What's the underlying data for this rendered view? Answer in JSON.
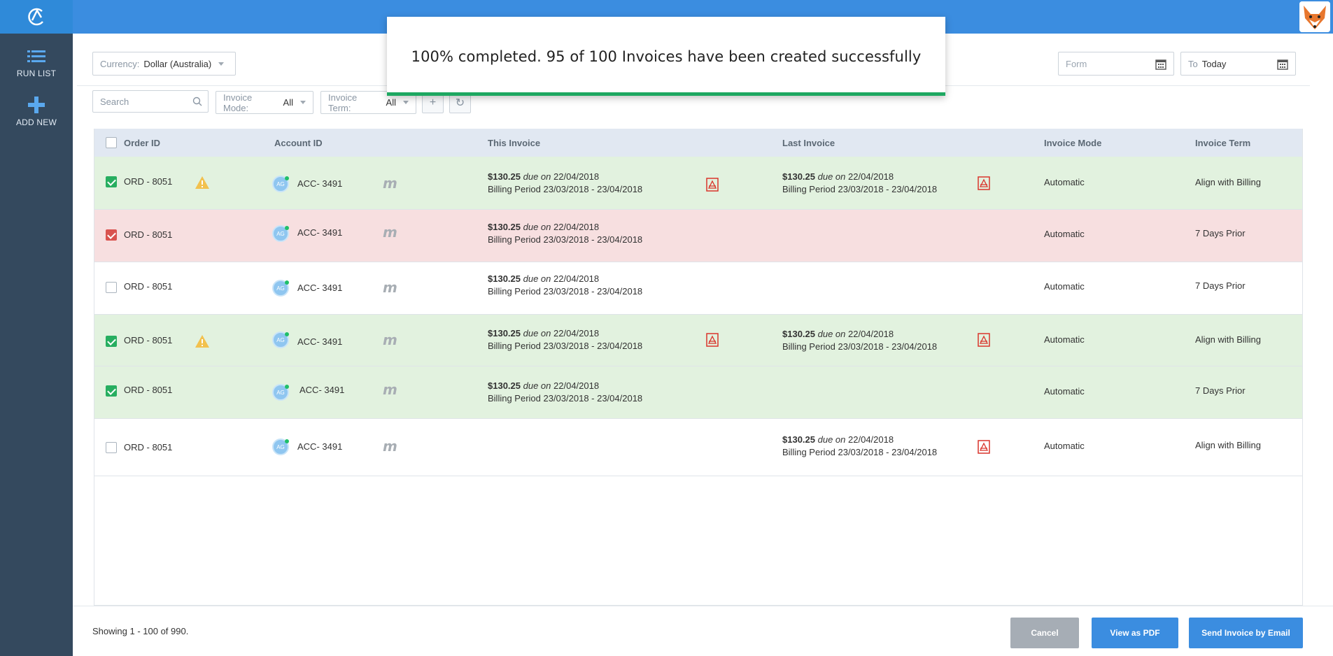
{
  "sidebar": {
    "items": [
      {
        "label": "RUN LIST",
        "icon": "list-icon"
      },
      {
        "label": "ADD NEW",
        "icon": "plus-icon"
      }
    ]
  },
  "filters": {
    "currency_label": "Currency:",
    "currency_value": "Dollar (Australia)",
    "from_placeholder": "Form",
    "to_label": "To",
    "to_value": "Today",
    "search_placeholder": "Search",
    "invoice_mode_label": "Invoice Mode:",
    "invoice_mode_value": "All",
    "invoice_term_label": "Invoice Term:",
    "invoice_term_value": "All"
  },
  "table": {
    "columns": [
      "Order ID",
      "Account ID",
      "This Invoice",
      "Last Invoice",
      "Invoice Mode",
      "Invoice Term"
    ],
    "rows": [
      {
        "order": "ORD - 8051",
        "account": "ACC- 3491",
        "avatar": "AG",
        "this_amount": "$130.25",
        "this_due_word": "due on",
        "this_due": "22/04/2018",
        "this_period": "Billing Period 23/03/2018 - 23/04/2018",
        "last_amount": "$130.25",
        "last_due_word": "due on",
        "last_due": "22/04/2018",
        "last_period": "Billing Period 23/03/2018 - 23/04/2018",
        "mode": "Automatic",
        "term": "Align with Billing"
      },
      {
        "order": "ORD - 8051",
        "account": "ACC- 3491",
        "avatar": "AG",
        "this_amount": "$130.25",
        "this_due_word": "due on",
        "this_due": "22/04/2018",
        "this_period": "Billing Period 23/03/2018 - 23/04/2018",
        "mode": "Automatic",
        "term": "7 Days Prior"
      },
      {
        "order": "ORD - 8051",
        "account": "ACC- 3491",
        "avatar": "AG",
        "this_amount": "$130.25",
        "this_due_word": "due on",
        "this_due": "22/04/2018",
        "this_period": "Billing Period 23/03/2018 - 23/04/2018",
        "mode": "Automatic",
        "term": "7 Days Prior"
      },
      {
        "order": "ORD - 8051",
        "account": "ACC- 3491",
        "avatar": "AG",
        "this_amount": "$130.25",
        "this_due_word": "due on",
        "this_due": "22/04/2018",
        "this_period": "Billing Period 23/03/2018 - 23/04/2018",
        "last_amount": "$130.25",
        "last_due_word": "due on",
        "last_due": "22/04/2018",
        "last_period": "Billing Period 23/03/2018 - 23/04/2018",
        "mode": "Automatic",
        "term": "Align with Billing"
      },
      {
        "order": "ORD - 8051",
        "account": "ACC- 3491",
        "avatar": "AG",
        "this_amount": "$130.25",
        "this_due_word": "due on",
        "this_due": "22/04/2018",
        "this_period": "Billing Period 23/03/2018 - 23/04/2018",
        "mode": "Automatic",
        "term": "7 Days Prior"
      },
      {
        "order": "ORD - 8051",
        "account": "ACC- 3491",
        "avatar": "AG",
        "last_amount": "$130.25",
        "last_due_word": "due on",
        "last_due": "22/04/2018",
        "last_period": "Billing Period 23/03/2018 - 23/04/2018",
        "mode": "Automatic",
        "term": "Align with Billing"
      }
    ]
  },
  "footer": {
    "showing": "Showing 1 - 100 of 990.",
    "cancel": "Cancel",
    "view_pdf": "View as PDF",
    "send_email": "Send Invoice by Email"
  },
  "toast": {
    "message": "100% completed. 95 of 100 Invoices have been created successfully",
    "progress": 1.0
  },
  "colors": {
    "accent": "#3b8de0",
    "sidebar": "#34495e",
    "success": "#1ea861",
    "row_green": "#e2f2df",
    "row_red": "#f7dfe0",
    "cancel_btn": "#a6adb5",
    "primary_btn": "#3b8de0"
  }
}
